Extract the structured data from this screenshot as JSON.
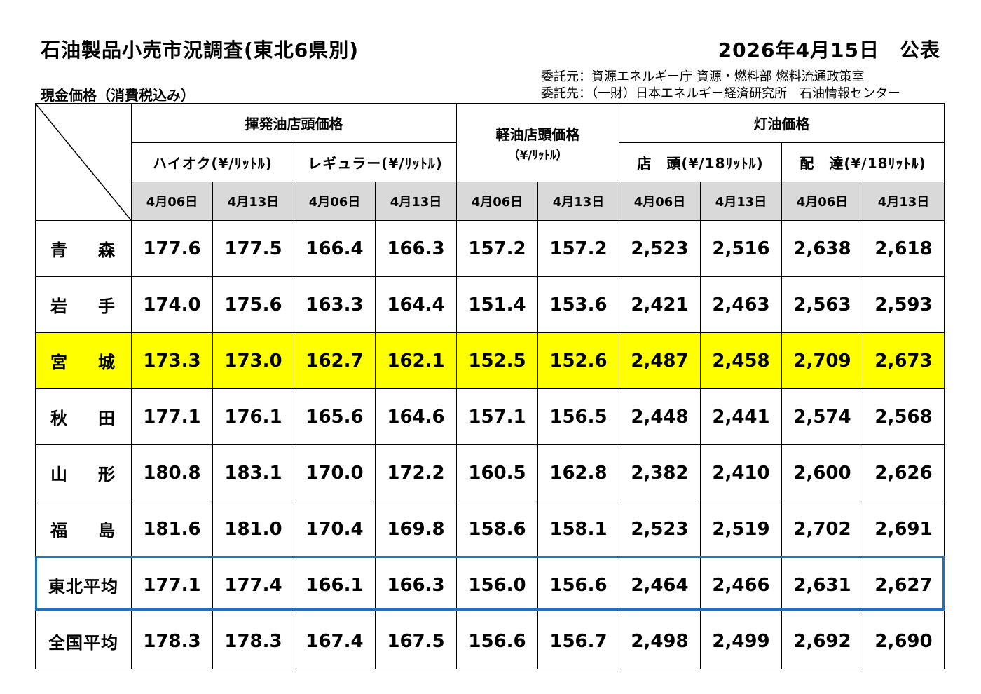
{
  "header": {
    "title": "石油製品小売市況調査(東北6県別)",
    "date": "2026年4月15日　公表",
    "subtitle": "現金価格（消費税込み）",
    "credit_line1": "委託元：資源エネルギー庁 資源・燃料部 燃料流通政策室",
    "credit_line2": "委託先：（一財）日本エネルギー経済研究所　石油情報センター"
  },
  "groups": {
    "gasoline": "揮発油店頭価格",
    "diesel": "軽油店頭価格",
    "diesel_unit": "（¥/ﾘｯﾄﾙ）",
    "kerosene": "灯油価格"
  },
  "subgroups": {
    "highoctane": "ハイオク(¥/ﾘｯﾄﾙ)",
    "regular": "レギュラー(¥/ﾘｯﾄﾙ)",
    "storefront": "店　頭(¥/18ﾘｯﾄﾙ)",
    "delivery": "配　達(¥/18ﾘｯﾄﾙ)"
  },
  "dates": [
    "4月06日",
    "4月13日",
    "4月06日",
    "4月13日",
    "4月06日",
    "4月13日",
    "4月06日",
    "4月13日",
    "4月06日",
    "4月13日"
  ],
  "rows": [
    {
      "name": "青　森",
      "values": [
        "177.6",
        "177.5",
        "166.4",
        "166.3",
        "157.2",
        "157.2",
        "2,523",
        "2,516",
        "2,638",
        "2,618"
      ]
    },
    {
      "name": "岩　手",
      "values": [
        "174.0",
        "175.6",
        "163.3",
        "164.4",
        "151.4",
        "153.6",
        "2,421",
        "2,463",
        "2,563",
        "2,593"
      ]
    },
    {
      "name": "宮　城",
      "values": [
        "173.3",
        "173.0",
        "162.7",
        "162.1",
        "152.5",
        "152.6",
        "2,487",
        "2,458",
        "2,709",
        "2,673"
      ]
    },
    {
      "name": "秋　田",
      "values": [
        "177.1",
        "176.1",
        "165.6",
        "164.6",
        "157.1",
        "156.5",
        "2,448",
        "2,441",
        "2,574",
        "2,568"
      ]
    },
    {
      "name": "山　形",
      "values": [
        "180.8",
        "183.1",
        "170.0",
        "172.2",
        "160.5",
        "162.8",
        "2,382",
        "2,410",
        "2,600",
        "2,626"
      ]
    },
    {
      "name": "福　島",
      "values": [
        "181.6",
        "181.0",
        "170.4",
        "169.8",
        "158.6",
        "158.1",
        "2,523",
        "2,519",
        "2,702",
        "2,691"
      ]
    },
    {
      "name": "東北平均",
      "values": [
        "177.1",
        "177.4",
        "166.1",
        "166.3",
        "156.0",
        "156.6",
        "2,464",
        "2,466",
        "2,631",
        "2,627"
      ]
    },
    {
      "name": "全国平均",
      "values": [
        "178.3",
        "178.3",
        "167.4",
        "167.5",
        "156.6",
        "156.7",
        "2,498",
        "2,499",
        "2,692",
        "2,690"
      ]
    }
  ],
  "style": {
    "highlight_row": "宮　城",
    "highlight_color": "#ffff00",
    "date_header_bg": "#d9d9d9",
    "average_outline_color": "#1e73be"
  }
}
